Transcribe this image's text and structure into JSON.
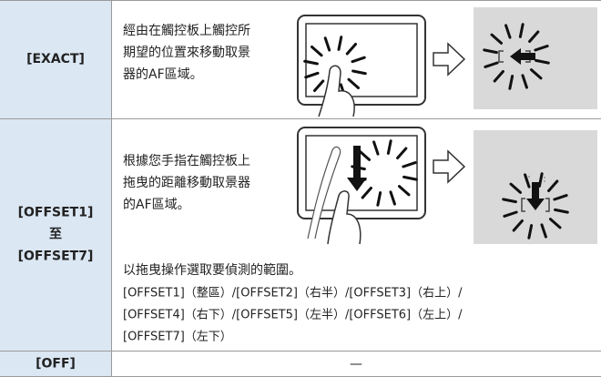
{
  "rows": [
    {
      "label": [
        "[EXACT]"
      ],
      "description": [
        "經由在觸控板上觸控所",
        "期望的位置來移動取景",
        "器的AF區域。"
      ]
    },
    {
      "label": [
        "[OFFSET1]",
        "至",
        "[OFFSET7]"
      ],
      "description": [
        "根據您手指在觸控板上",
        "拖曳的距離移動取景器",
        "的AF區域。"
      ],
      "note": "以拖曳操作選取要偵測的範圍。",
      "options": [
        "[OFFSET1]（整區）/[OFFSET2]（右半）/[OFFSET3]（右上）/",
        "[OFFSET4]（右下）/[OFFSET5]（左半）/[OFFSET6]（左上）/",
        "[OFFSET7]（左下）"
      ]
    },
    {
      "label": [
        "[OFF]"
      ],
      "description": [
        "—"
      ]
    }
  ]
}
